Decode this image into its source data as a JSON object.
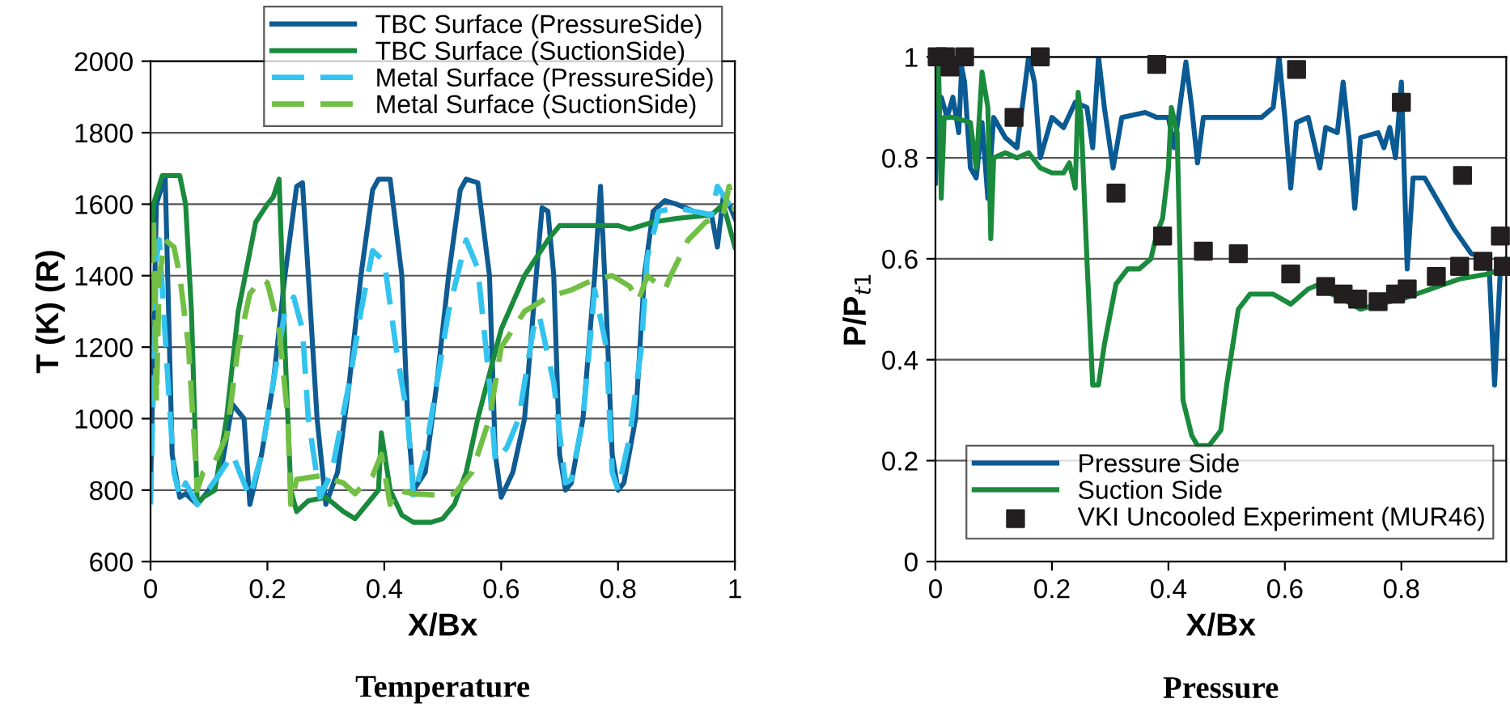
{
  "chart_data": [
    {
      "type": "line",
      "title": "Temperature",
      "xlabel": "X/Bx",
      "ylabel": "T (K) (R)",
      "xlim": [
        0,
        1
      ],
      "xticks": [
        0,
        0.2,
        0.4,
        0.6,
        0.8,
        1
      ],
      "ylim": [
        600,
        2000
      ],
      "yticks": [
        600,
        800,
        1000,
        1200,
        1400,
        1600,
        1800,
        2000
      ],
      "grid": "y",
      "legend": "top right",
      "series": [
        {
          "name": "TBC Surface (PressureSide)",
          "color": "#0f5b92",
          "line_style": "solid",
          "x": [
            0,
            0.01,
            0.025,
            0.037,
            0.05,
            0.06,
            0.08,
            0.1,
            0.12,
            0.14,
            0.16,
            0.17,
            0.19,
            0.21,
            0.23,
            0.25,
            0.26,
            0.27,
            0.285,
            0.3,
            0.32,
            0.34,
            0.36,
            0.38,
            0.39,
            0.41,
            0.43,
            0.44,
            0.45,
            0.47,
            0.49,
            0.51,
            0.53,
            0.54,
            0.56,
            0.58,
            0.59,
            0.6,
            0.62,
            0.64,
            0.66,
            0.67,
            0.68,
            0.69,
            0.7,
            0.71,
            0.72,
            0.74,
            0.76,
            0.77,
            0.78,
            0.79,
            0.8,
            0.81,
            0.83,
            0.845,
            0.86,
            0.88,
            0.9,
            0.93,
            0.96,
            0.97,
            0.98,
            0.99,
            1.0
          ],
          "values": [
            800,
            1600,
            1680,
            900,
            780,
            790,
            760,
            800,
            850,
            1040,
            1000,
            760,
            900,
            1100,
            1400,
            1650,
            1660,
            1400,
            1000,
            760,
            850,
            1100,
            1400,
            1640,
            1670,
            1670,
            1400,
            1000,
            800,
            850,
            1100,
            1400,
            1640,
            1670,
            1660,
            1400,
            900,
            780,
            850,
            1000,
            1400,
            1590,
            1580,
            1400,
            900,
            800,
            820,
            1000,
            1400,
            1650,
            1300,
            900,
            800,
            820,
            1000,
            1400,
            1580,
            1610,
            1600,
            1580,
            1570,
            1480,
            1620,
            1600,
            1560
          ]
        },
        {
          "name": "TBC Surface (SuctionSide)",
          "color": "#1a8a3c",
          "line_style": "solid",
          "x": [
            0,
            0.005,
            0.02,
            0.05,
            0.06,
            0.07,
            0.08,
            0.09,
            0.11,
            0.13,
            0.15,
            0.18,
            0.2,
            0.21,
            0.22,
            0.23,
            0.24,
            0.25,
            0.27,
            0.3,
            0.33,
            0.35,
            0.37,
            0.39,
            0.395,
            0.41,
            0.43,
            0.45,
            0.48,
            0.5,
            0.52,
            0.54,
            0.56,
            0.6,
            0.64,
            0.68,
            0.7,
            0.8,
            0.82,
            0.86,
            0.9,
            0.96,
            0.98,
            1.0
          ],
          "values": [
            1450,
            1600,
            1680,
            1680,
            1600,
            1300,
            760,
            780,
            800,
            1000,
            1300,
            1550,
            1600,
            1620,
            1670,
            1200,
            800,
            740,
            770,
            780,
            740,
            720,
            760,
            800,
            960,
            800,
            730,
            710,
            710,
            720,
            760,
            850,
            1000,
            1250,
            1400,
            1500,
            1540,
            1540,
            1530,
            1550,
            1560,
            1570,
            1600,
            1480
          ]
        },
        {
          "name": "Metal Surface (PressureSide)",
          "color": "#33c3ef",
          "line_style": "dashed",
          "x": [
            0,
            0.01,
            0.015,
            0.03,
            0.04,
            0.05,
            0.06,
            0.08,
            0.09,
            0.12,
            0.14,
            0.17,
            0.19,
            0.21,
            0.23,
            0.245,
            0.26,
            0.27,
            0.29,
            0.31,
            0.34,
            0.36,
            0.38,
            0.4,
            0.42,
            0.44,
            0.45,
            0.47,
            0.49,
            0.51,
            0.54,
            0.56,
            0.58,
            0.59,
            0.61,
            0.63,
            0.655,
            0.665,
            0.69,
            0.71,
            0.72,
            0.74,
            0.76,
            0.78,
            0.79,
            0.8,
            0.82,
            0.84,
            0.85,
            0.87,
            0.9,
            0.93,
            0.96,
            0.97,
            0.99,
            1.0
          ],
          "values": [
            760,
            1450,
            1500,
            1100,
            850,
            780,
            820,
            760,
            780,
            850,
            900,
            780,
            900,
            1100,
            1300,
            1340,
            1250,
            1000,
            780,
            850,
            1100,
            1300,
            1470,
            1440,
            1200,
            1000,
            780,
            900,
            1100,
            1300,
            1500,
            1420,
            1100,
            880,
            920,
            1000,
            1250,
            1290,
            1100,
            820,
            830,
            1000,
            1360,
            1200,
            850,
            800,
            950,
            1200,
            1450,
            1580,
            1590,
            1580,
            1570,
            1650,
            1600,
            1580
          ]
        },
        {
          "name": "Metal Surface (SuctionSide)",
          "color": "#72bf45",
          "line_style": "dashed",
          "x": [
            0,
            0.005,
            0.01,
            0.015,
            0.025,
            0.04,
            0.05,
            0.065,
            0.08,
            0.09,
            0.11,
            0.13,
            0.15,
            0.17,
            0.19,
            0.2,
            0.22,
            0.235,
            0.24,
            0.25,
            0.29,
            0.33,
            0.35,
            0.38,
            0.395,
            0.41,
            0.42,
            0.45,
            0.5,
            0.52,
            0.55,
            0.58,
            0.6,
            0.64,
            0.68,
            0.72,
            0.76,
            0.79,
            0.82,
            0.835,
            0.85,
            0.88,
            0.89,
            0.92,
            0.95,
            0.98,
            0.99,
            1.0
          ],
          "values": [
            1300,
            1560,
            1050,
            1400,
            1500,
            1480,
            1400,
            1200,
            800,
            850,
            880,
            950,
            1200,
            1350,
            1390,
            1380,
            1250,
            1000,
            760,
            830,
            840,
            820,
            790,
            840,
            900,
            760,
            800,
            790,
            785,
            790,
            850,
            1000,
            1200,
            1300,
            1340,
            1360,
            1390,
            1400,
            1370,
            1330,
            1400,
            1360,
            1400,
            1500,
            1550,
            1570,
            1650,
            1580
          ]
        }
      ]
    },
    {
      "type": "line",
      "title": "Pressure",
      "xlabel": "X/Bx",
      "ylabel": "P/P$_{t1}$",
      "xlim": [
        0,
        0.98
      ],
      "xticks": [
        0,
        0.2,
        0.4,
        0.6,
        0.8
      ],
      "ylim": [
        0,
        1
      ],
      "yticks": [
        0,
        0.2,
        0.4,
        0.6,
        0.8,
        1
      ],
      "grid": "y",
      "legend": "bottom right",
      "series": [
        {
          "name": "Pressure Side",
          "color": "#0a5a94",
          "line_style": "solid",
          "x": [
            0,
            0.003,
            0.01,
            0.02,
            0.03,
            0.04,
            0.045,
            0.05,
            0.06,
            0.07,
            0.08,
            0.09,
            0.1,
            0.12,
            0.14,
            0.16,
            0.17,
            0.18,
            0.2,
            0.22,
            0.24,
            0.26,
            0.27,
            0.28,
            0.29,
            0.305,
            0.32,
            0.36,
            0.38,
            0.4,
            0.41,
            0.43,
            0.44,
            0.45,
            0.46,
            0.5,
            0.56,
            0.58,
            0.59,
            0.6,
            0.61,
            0.62,
            0.64,
            0.66,
            0.67,
            0.69,
            0.7,
            0.71,
            0.72,
            0.73,
            0.76,
            0.77,
            0.78,
            0.79,
            0.8,
            0.81,
            0.82,
            0.84,
            0.86,
            0.89,
            0.92,
            0.95,
            0.96,
            0.97,
            0.98
          ],
          "values": [
            0.75,
            0.88,
            0.92,
            0.88,
            0.92,
            0.85,
            0.98,
            0.95,
            0.78,
            0.76,
            0.87,
            0.72,
            0.88,
            0.84,
            0.82,
            1.0,
            0.95,
            0.8,
            0.88,
            0.86,
            0.91,
            0.9,
            0.82,
            1.0,
            0.9,
            0.78,
            0.88,
            0.89,
            0.88,
            0.88,
            0.82,
            0.99,
            0.9,
            0.79,
            0.88,
            0.88,
            0.88,
            0.9,
            1.0,
            0.88,
            0.74,
            0.87,
            0.88,
            0.78,
            0.86,
            0.85,
            0.95,
            0.84,
            0.7,
            0.84,
            0.85,
            0.82,
            0.86,
            0.8,
            0.95,
            0.58,
            0.76,
            0.76,
            0.72,
            0.66,
            0.61,
            0.6,
            0.35,
            0.58,
            0.6
          ]
        },
        {
          "name": "Suction Side",
          "color": "#1a8a3c",
          "line_style": "solid",
          "x": [
            0,
            0.005,
            0.01,
            0.015,
            0.03,
            0.06,
            0.07,
            0.08,
            0.09,
            0.095,
            0.1,
            0.12,
            0.14,
            0.16,
            0.18,
            0.2,
            0.22,
            0.23,
            0.24,
            0.245,
            0.25,
            0.26,
            0.27,
            0.28,
            0.29,
            0.31,
            0.33,
            0.35,
            0.37,
            0.38,
            0.39,
            0.4,
            0.405,
            0.415,
            0.42,
            0.425,
            0.44,
            0.45,
            0.47,
            0.49,
            0.5,
            0.52,
            0.54,
            0.58,
            0.61,
            0.64,
            0.66,
            0.68,
            0.7,
            0.73,
            0.76,
            0.8,
            0.85,
            0.9,
            0.95,
            0.97,
            0.98
          ],
          "values": [
            0.9,
            1.0,
            0.72,
            0.88,
            0.88,
            0.87,
            0.78,
            0.97,
            0.9,
            0.64,
            0.8,
            0.81,
            0.8,
            0.81,
            0.78,
            0.77,
            0.77,
            0.79,
            0.74,
            0.93,
            0.88,
            0.6,
            0.35,
            0.35,
            0.43,
            0.55,
            0.58,
            0.58,
            0.6,
            0.65,
            0.68,
            0.78,
            0.9,
            0.85,
            0.6,
            0.32,
            0.25,
            0.23,
            0.23,
            0.26,
            0.35,
            0.5,
            0.53,
            0.53,
            0.51,
            0.54,
            0.55,
            0.53,
            0.52,
            0.5,
            0.51,
            0.52,
            0.54,
            0.56,
            0.57,
            0.58,
            0.6
          ]
        },
        {
          "name": "VKI Uncooled Experiment (MUR46)",
          "type": "scatter",
          "color": "#231f20",
          "marker": "square",
          "x": [
            0.003,
            0.017,
            0.025,
            0.05,
            0.135,
            0.18,
            0.31,
            0.38,
            0.39,
            0.46,
            0.52,
            0.61,
            0.62,
            0.67,
            0.7,
            0.725,
            0.76,
            0.79,
            0.8,
            0.81,
            0.86,
            0.9,
            0.905,
            0.94,
            0.97,
            0.975
          ],
          "values": [
            1.0,
            1.0,
            0.98,
            1.0,
            0.88,
            1.0,
            0.73,
            0.985,
            0.645,
            0.615,
            0.61,
            0.57,
            0.975,
            0.545,
            0.53,
            0.52,
            0.515,
            0.53,
            0.91,
            0.54,
            0.565,
            0.585,
            0.765,
            0.595,
            0.645,
            0.585
          ]
        }
      ]
    }
  ]
}
